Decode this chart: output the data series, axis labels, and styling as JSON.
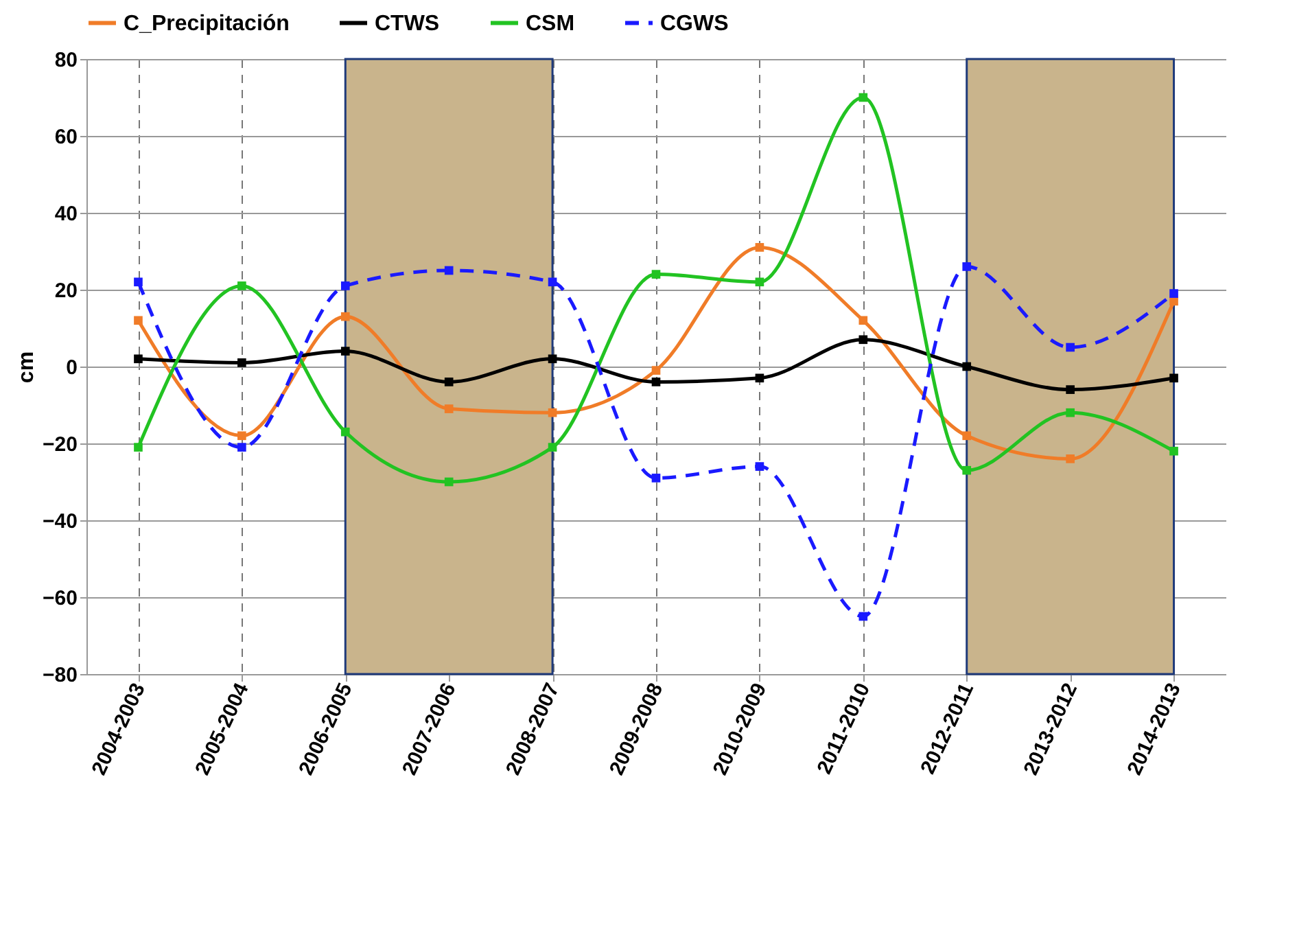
{
  "chart_data": {
    "type": "line",
    "ylabel": "cm",
    "categories": [
      "2004-2003",
      "2005-2004",
      "2006-2005",
      "2007-2006",
      "2008-2007",
      "2009-2008",
      "2010-2009",
      "2011-2010",
      "2012-2011",
      "2013-2012",
      "2014-2013"
    ],
    "series": [
      {
        "name": "C_Precipitación",
        "color": "#f07c28",
        "values": [
          12,
          -18,
          13,
          -11,
          -12,
          -1,
          31,
          12,
          -18,
          -24,
          17
        ]
      },
      {
        "name": "CTWS",
        "color": "#000000",
        "values": [
          2,
          1,
          4,
          -4,
          2,
          -4,
          -3,
          7,
          0,
          -6,
          -3
        ]
      },
      {
        "name": "CSM",
        "color": "#22c322",
        "values": [
          -21,
          21,
          -17,
          -30,
          -21,
          24,
          22,
          70,
          -27,
          -12,
          -22
        ]
      },
      {
        "name": "CGWS",
        "color": "#1a1aff",
        "line_style": "dashed",
        "values": [
          22,
          -21,
          21,
          25,
          22,
          -29,
          -26,
          -65,
          26,
          5,
          19
        ]
      }
    ],
    "ylim": [
      -80,
      80
    ],
    "yticks": [
      -80,
      -60,
      -40,
      -20,
      0,
      20,
      40,
      60,
      80
    ],
    "bands": [
      {
        "axis": "x",
        "from": "2006-2005",
        "to": "2008-2007",
        "color": "#c9b48c"
      },
      {
        "axis": "x",
        "from": "2012-2011",
        "to": "2014-2013",
        "color": "#c9b48c"
      }
    ],
    "grid": true,
    "legend": "top",
    "marker": "square",
    "line_style": "solid"
  }
}
